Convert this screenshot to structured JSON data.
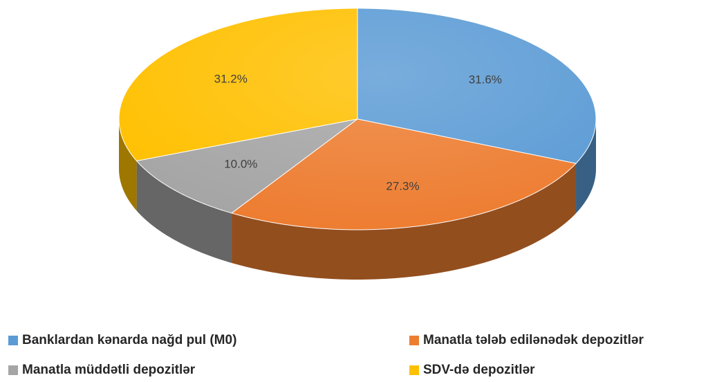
{
  "chart_data": {
    "type": "pie3d",
    "categories": [
      "Banklardan kənarda nağd pul (M0)",
      "Manatla tələb edilənədək depozitlər",
      "Manatla müddətli depozitlər",
      "SDV-də depozitlər"
    ],
    "values": [
      31.6,
      27.3,
      10.0,
      31.2
    ],
    "value_labels": [
      "31.6%",
      "27.3%",
      "10.0%",
      "31.2%"
    ],
    "colors": [
      "#5b9bd5",
      "#ed7d31",
      "#a5a5a5",
      "#ffc000"
    ],
    "legend": "bottom"
  }
}
